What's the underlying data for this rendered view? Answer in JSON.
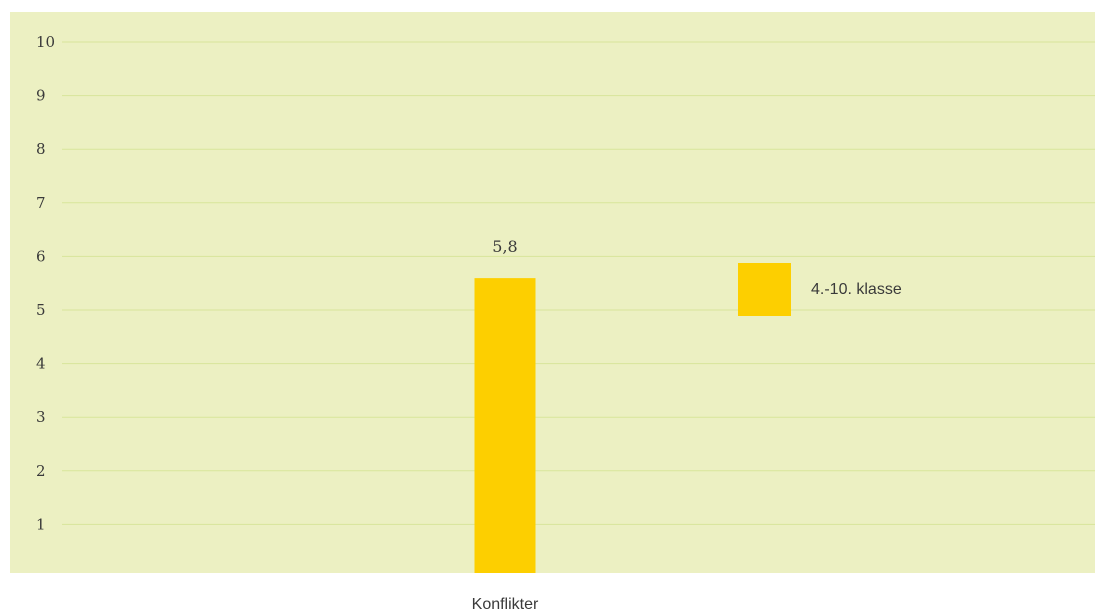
{
  "chart_data": {
    "type": "bar",
    "categories": [
      "Konflikter"
    ],
    "series": [
      {
        "name": "4.-10. klasse",
        "values": [
          5.8
        ],
        "value_labels": [
          "5,8"
        ],
        "color": "#FDCF00"
      }
    ],
    "title": "",
    "xlabel": "",
    "ylabel": "",
    "ylim": [
      0,
      10
    ],
    "y_ticks": [
      1,
      2,
      3,
      4,
      5,
      6,
      7,
      8,
      9,
      10
    ],
    "grid": true,
    "legend": "right",
    "plot_background": "#ECF0C2",
    "grid_color": "#D8E59A"
  }
}
